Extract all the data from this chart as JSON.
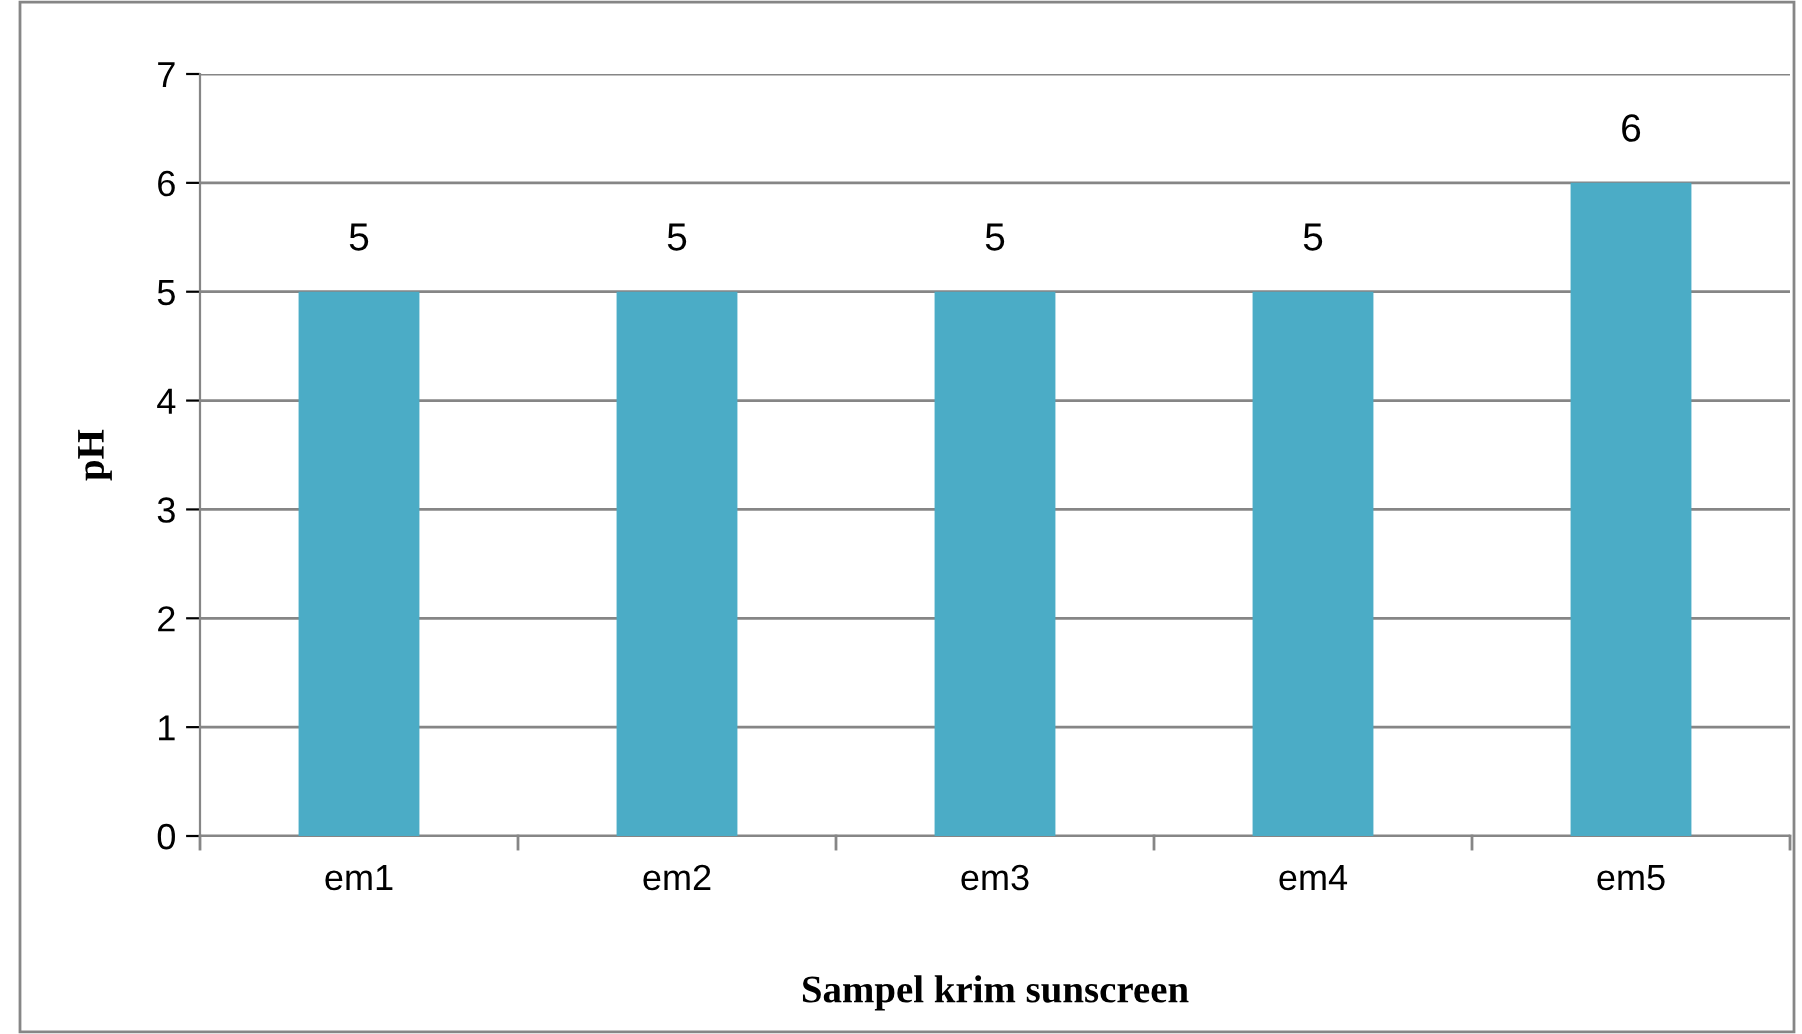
{
  "chart_data": {
    "type": "bar",
    "xlabel": "Sampel krim sunscreen",
    "ylabel": "pH",
    "categories": [
      "em1",
      "em2",
      "em3",
      "em4",
      "em5"
    ],
    "values": [
      5,
      5,
      5,
      5,
      6
    ],
    "color": "#4bacc6",
    "ylim": [
      0,
      7
    ],
    "yticks": [
      0,
      1,
      2,
      3,
      4,
      5,
      6,
      7
    ],
    "grid": "y",
    "data_labels": true
  }
}
